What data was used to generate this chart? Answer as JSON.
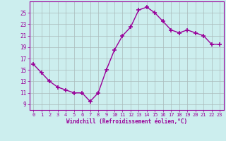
{
  "hours": [
    0,
    1,
    2,
    3,
    4,
    5,
    6,
    7,
    8,
    9,
    10,
    11,
    12,
    13,
    14,
    15,
    16,
    17,
    18,
    19,
    20,
    21,
    22,
    23
  ],
  "values": [
    16.0,
    14.5,
    13.0,
    12.0,
    11.5,
    11.0,
    11.0,
    9.5,
    11.0,
    15.0,
    18.5,
    21.0,
    22.5,
    25.5,
    26.0,
    25.0,
    23.5,
    22.0,
    21.5,
    22.0,
    21.5,
    21.0,
    19.5,
    19.5
  ],
  "line_color": "#990099",
  "marker": "+",
  "marker_size": 4,
  "marker_linewidth": 1.2,
  "bg_color": "#cceeee",
  "grid_color": "#aabbbb",
  "tick_label_color": "#990099",
  "xlabel": "Windchill (Refroidissement éolien,°C)",
  "xlabel_color": "#990099",
  "ylabel_ticks": [
    9,
    11,
    13,
    15,
    17,
    19,
    21,
    23,
    25
  ],
  "ylim": [
    8.0,
    27.0
  ],
  "xlim": [
    -0.5,
    23.5
  ],
  "border_color": "#990099",
  "figsize": [
    3.2,
    2.0
  ],
  "dpi": 100
}
